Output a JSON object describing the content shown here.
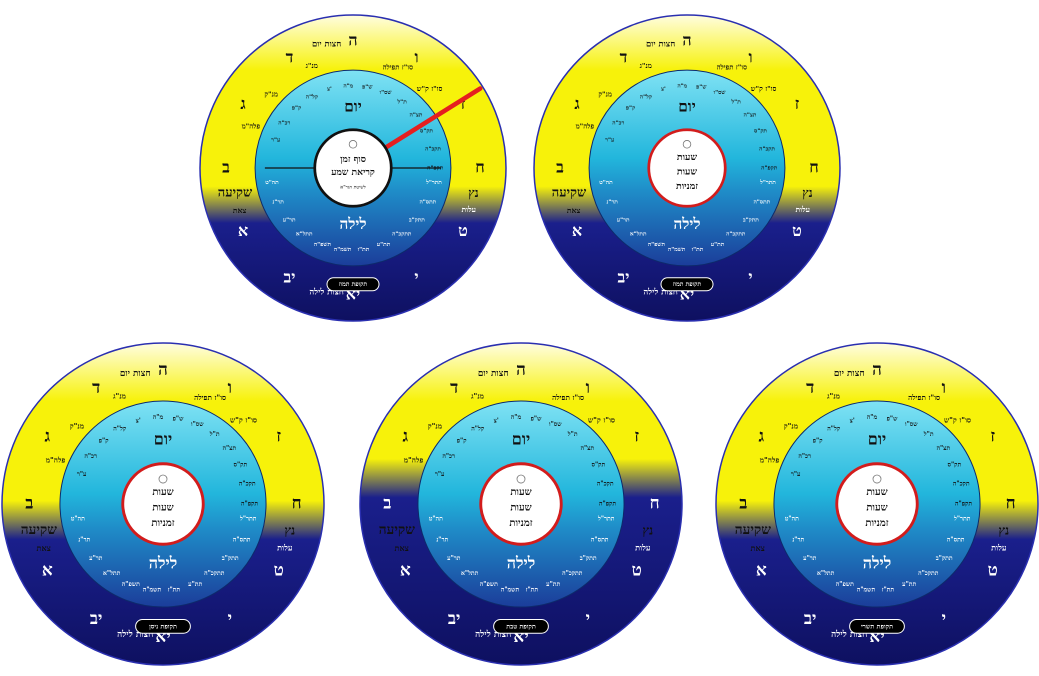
{
  "colors": {
    "yellow": "#f7f20a",
    "navy": "#1a1f8c",
    "inner_cyan": "#22b6dc",
    "inner_navy": "#1b3d9a",
    "center_ring": "#d21c1c",
    "hand": "#e51f1f",
    "day_letters": "#111111",
    "night_letters": "#ffffff"
  },
  "outer_ring_hours": [
    "ה",
    "ו",
    "ז",
    "ח",
    "ט",
    "י",
    "יא",
    "יב",
    "א",
    "ב",
    "ג",
    "ד"
  ],
  "outer_ring_labels": {
    "chatzot_yom": "חצות יום",
    "chatzot_layla": "חצות לילה",
    "shkia": "שקיעה",
    "tzeit": "צאת",
    "netz": "נץ",
    "alot": "עלות",
    "mincha_gedola": "מנ\"ג",
    "mincha_ketana": "מנ\"ק",
    "plag": "פלה\"מ",
    "sof_tefila": "סו\"ז תפילה",
    "sof_shema": "סו\"ז ק\"ש"
  },
  "inner_ring": {
    "day_title": "יום",
    "night_title": "לילה",
    "day_marks": [
      "ע\"ר",
      "רכ\"ה",
      "ק\"פ",
      "קל\"ה",
      "צ'",
      "מ\"ה",
      "ש\"פ",
      "שס\"ו",
      "ת\"ל",
      "תצ\"ה",
      "תק\"ס",
      "תקכ\"ה",
      "תקפ\"ה"
    ],
    "night_marks": [
      "תתר\"ל",
      "תתס\"ה",
      "תתק\"ב",
      "תתקכ\"ה",
      "תת\"ע",
      "תת\"ז",
      "תשמ\"ה",
      "תשפ\"ה",
      "תתל\"א",
      "תר\"ע",
      "תר\"נ",
      "תה\"ט"
    ]
  },
  "center": {
    "zmaniyot_lines": [
      "שעות",
      "שעות",
      "זמניות"
    ],
    "shema_title": "סוף זמן קריאת שמע",
    "shema_note": "לשיטת הגר\"א"
  },
  "dials": [
    {
      "id": "dial-1",
      "center_type": "shema",
      "season": "תקופת תמוז",
      "has_hand": true
    },
    {
      "id": "dial-2",
      "center_type": "zmaniyot",
      "season": "תקופת תמוז",
      "has_hand": false
    },
    {
      "id": "dial-3",
      "center_type": "zmaniyot",
      "season": "תקופת ניסן",
      "has_hand": false
    },
    {
      "id": "dial-4",
      "center_type": "zmaniyot",
      "season": "תקופת טבת",
      "has_hand": false
    },
    {
      "id": "dial-5",
      "center_type": "zmaniyot",
      "season": "תקופת תשרי",
      "has_hand": false
    }
  ]
}
